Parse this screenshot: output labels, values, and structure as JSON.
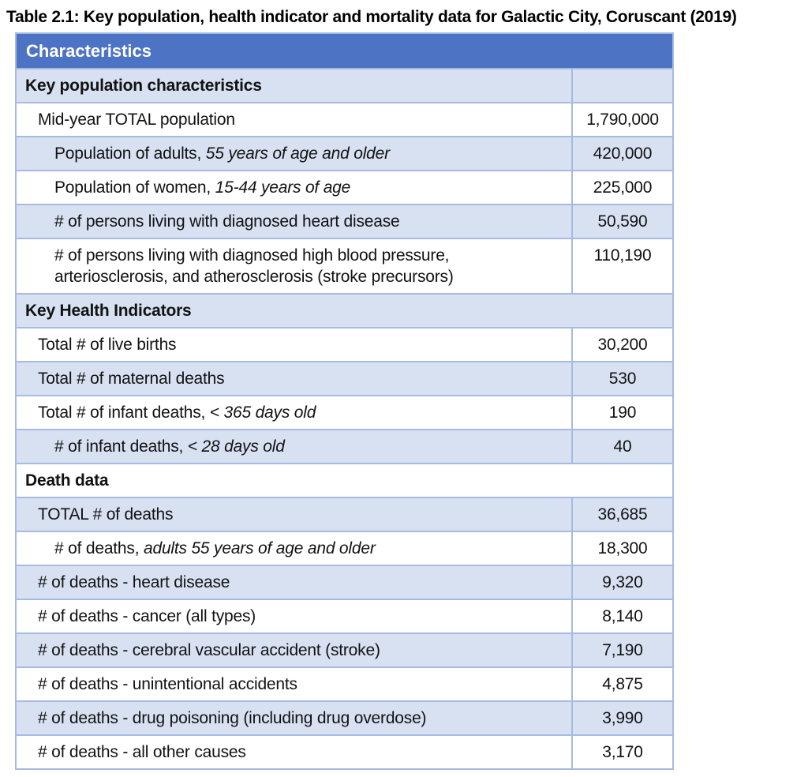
{
  "title": "Table 2.1: Key population, health indicator and mortality data for Galactic City, Coruscant (2019)",
  "colors": {
    "header_bg": "#4d73c4",
    "band_bg": "#d8e1f2",
    "border": "#a6bae2",
    "header_text": "#ffffff"
  },
  "table": {
    "header": "Characteristics",
    "rows": [
      {
        "type": "section",
        "span": false,
        "label": "Key population characteristics",
        "value": ""
      },
      {
        "type": "data",
        "indent": 1,
        "label": "Mid-year TOTAL population",
        "value": "1,790,000"
      },
      {
        "type": "data",
        "indent": 2,
        "label": "Population of adults, ",
        "italic": "55 years of age and older",
        "value": "420,000"
      },
      {
        "type": "data",
        "indent": 2,
        "label": "Population of women, ",
        "italic": "15-44 years of age",
        "value": "225,000"
      },
      {
        "type": "data",
        "indent": 2,
        "label": "# of persons living with diagnosed heart disease",
        "value": "50,590"
      },
      {
        "type": "data",
        "indent": 2,
        "label": "# of persons living with diagnosed high blood pressure, arteriosclerosis, and atherosclerosis (stroke precursors)",
        "value": "110,190"
      },
      {
        "type": "section",
        "span": true,
        "label": "Key Health Indicators"
      },
      {
        "type": "data",
        "indent": 1,
        "label": "Total # of live births",
        "value": "30,200"
      },
      {
        "type": "data",
        "indent": 1,
        "label": "Total # of maternal deaths",
        "value": "530"
      },
      {
        "type": "data",
        "indent": 1,
        "label": "Total # of infant deaths, ",
        "italic": "< 365 days old",
        "value": "190"
      },
      {
        "type": "data",
        "indent": 2,
        "label": "# of infant deaths, ",
        "italic": "< 28 days old",
        "value": "40"
      },
      {
        "type": "section",
        "span": true,
        "label": "Death data"
      },
      {
        "type": "data",
        "indent": 1,
        "label": "TOTAL # of deaths",
        "value": "36,685"
      },
      {
        "type": "data",
        "indent": 2,
        "label": "# of deaths, ",
        "italic": "adults 55 years of age and older",
        "value": "18,300"
      },
      {
        "type": "data",
        "indent": 1,
        "label": "# of deaths - heart disease",
        "value": "9,320"
      },
      {
        "type": "data",
        "indent": 1,
        "label": "# of deaths - cancer (all types)",
        "value": "8,140"
      },
      {
        "type": "data",
        "indent": 1,
        "label": "# of deaths - cerebral vascular accident (stroke)",
        "value": "7,190"
      },
      {
        "type": "data",
        "indent": 1,
        "label": "# of deaths - unintentional accidents",
        "value": "4,875"
      },
      {
        "type": "data",
        "indent": 1,
        "label": "# of deaths - drug poisoning (including drug overdose)",
        "value": "3,990"
      },
      {
        "type": "data",
        "indent": 1,
        "label": "# of deaths - all other causes",
        "value": "3,170"
      }
    ]
  }
}
